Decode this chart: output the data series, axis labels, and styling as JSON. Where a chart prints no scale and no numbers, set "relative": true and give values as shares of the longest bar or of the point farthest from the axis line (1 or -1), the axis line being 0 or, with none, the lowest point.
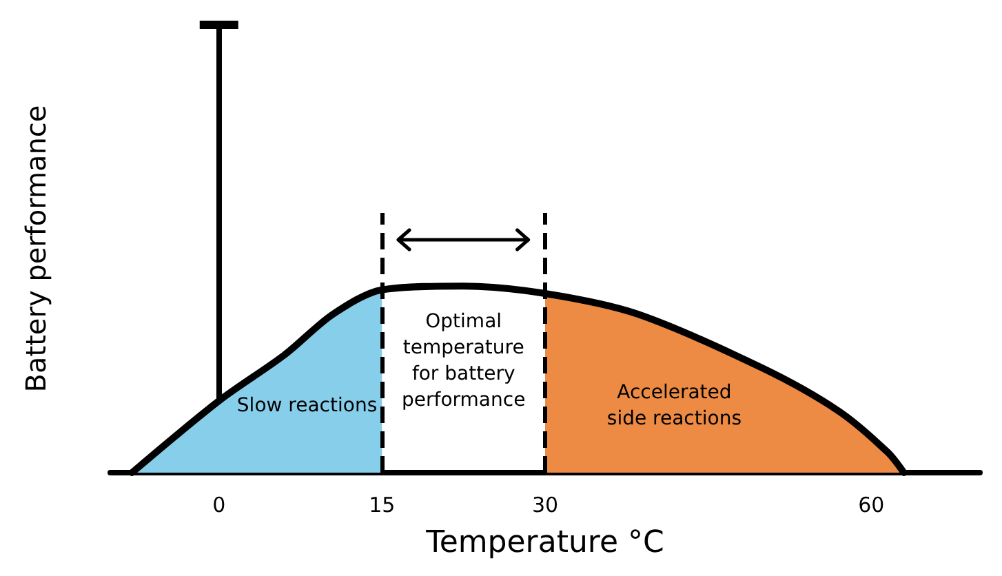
{
  "chart_data": {
    "type": "line",
    "relative": true,
    "xlabel": "Temperature °C",
    "ylabel": "Battery performance",
    "xlim": [
      -10,
      70
    ],
    "xticks": [
      0,
      15,
      30,
      60
    ],
    "grid": false,
    "marker": "none",
    "line_style": "solid",
    "series": [
      {
        "color": "#000000",
        "x": [
          -8,
          0,
          6,
          10.5,
          15,
          22.5,
          30,
          38.5,
          50,
          57,
          61.5,
          63
        ],
        "values": [
          0,
          0.385,
          0.63,
          0.85,
          0.98,
          1,
          0.96,
          0.85,
          0.56,
          0.33,
          0.11,
          0
        ]
      },
      {
        "type": "area",
        "color": "#87ceeb",
        "x": [
          -8,
          0,
          6,
          10.5,
          15
        ],
        "values": [
          0,
          0.385,
          0.63,
          0.85,
          0.98
        ]
      },
      {
        "type": "area",
        "color": "#ed8a44",
        "x": [
          30,
          38.5,
          50,
          57,
          61.5,
          63
        ],
        "values": [
          0.96,
          0.85,
          0.56,
          0.33,
          0.11,
          0
        ]
      }
    ],
    "ref_lines": [
      {
        "axis": "x",
        "value": 15,
        "line_style": "dashed",
        "color": "#000000"
      },
      {
        "axis": "x",
        "value": 30,
        "line_style": "dashed",
        "color": "#000000"
      }
    ],
    "annotations": [
      "Slow reactions",
      "Optimal\ntemperature\nfor battery\nperformance",
      "Accelerated\nside reactions"
    ]
  }
}
